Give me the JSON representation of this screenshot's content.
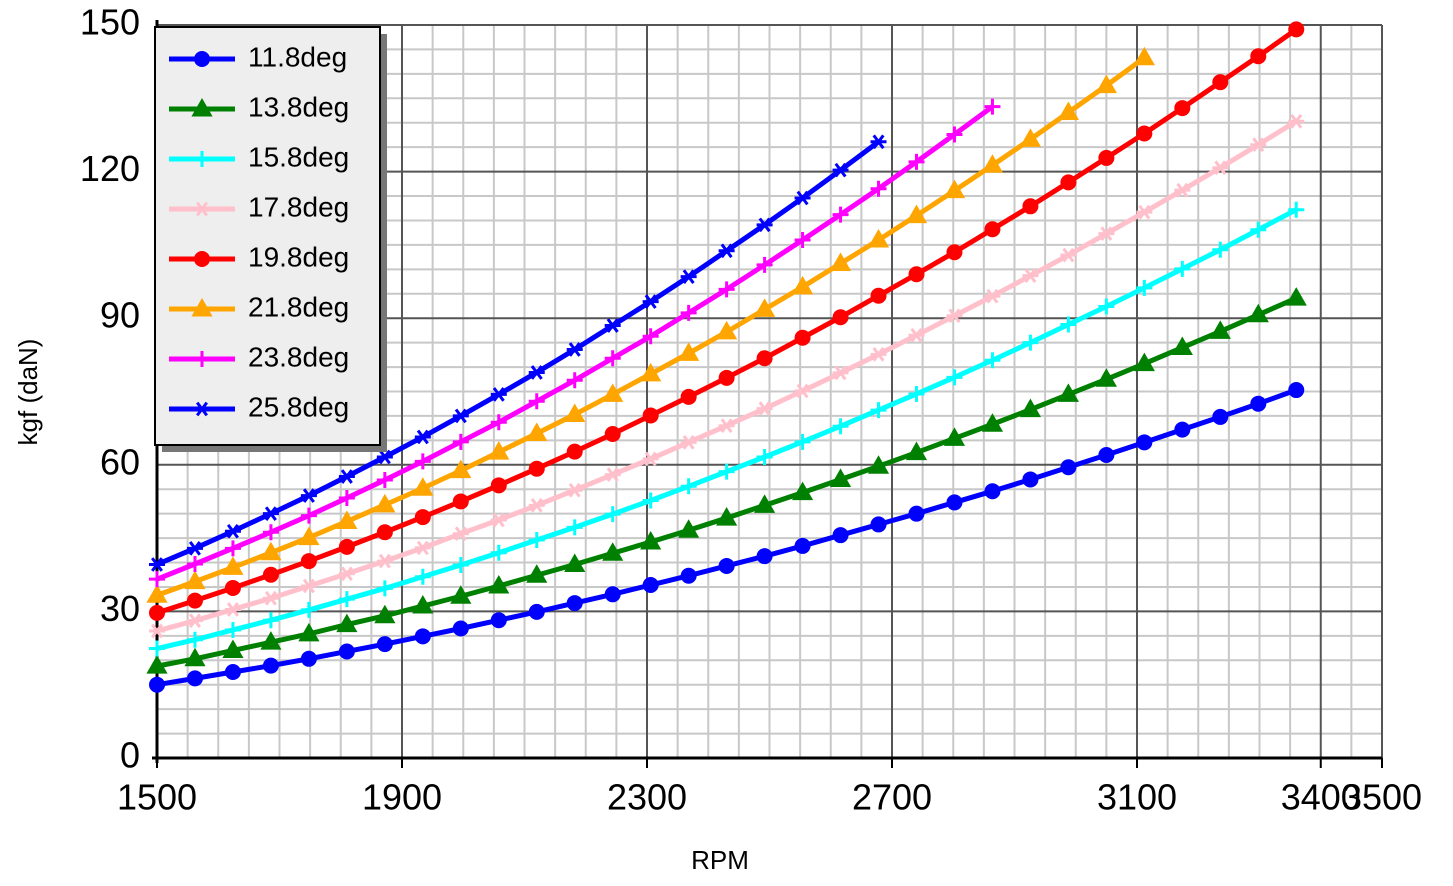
{
  "chart_data": {
    "type": "line",
    "xlabel": "RPM",
    "ylabel": "kgf (daN)",
    "x": [
      1500,
      1562,
      1624,
      1686,
      1748,
      1810,
      1872,
      1934,
      1996,
      2058,
      2120,
      2182,
      2244,
      2306,
      2368,
      2430,
      2492,
      2554,
      2616,
      2678,
      2740,
      2802,
      2864,
      2926,
      2988,
      3050,
      3112,
      3174,
      3236,
      3298,
      3360
    ],
    "series": [
      {
        "name": "11.8deg",
        "color": "#0000ff",
        "marker": "circle",
        "values": [
          15.0,
          16.3,
          17.6,
          18.9,
          20.3,
          21.8,
          23.3,
          24.9,
          26.5,
          28.2,
          29.9,
          31.7,
          33.5,
          35.4,
          37.3,
          39.3,
          41.3,
          43.4,
          45.6,
          47.8,
          50.0,
          52.3,
          54.6,
          57.0,
          59.5,
          62.0,
          64.6,
          67.2,
          69.8,
          72.5,
          75.3
        ]
      },
      {
        "name": "13.8deg",
        "color": "#008000",
        "marker": "triangle",
        "values": [
          18.8,
          20.3,
          22.0,
          23.7,
          25.4,
          27.3,
          29.1,
          31.1,
          33.1,
          35.2,
          37.4,
          39.6,
          41.9,
          44.2,
          46.6,
          49.1,
          51.7,
          54.3,
          57.0,
          59.7,
          62.5,
          65.4,
          68.3,
          71.3,
          74.4,
          77.5,
          80.7,
          84.0,
          87.3,
          90.7,
          94.1
        ]
      },
      {
        "name": "15.8deg",
        "color": "#00ffff",
        "marker": "plus",
        "values": [
          22.4,
          24.2,
          26.2,
          28.2,
          30.3,
          32.5,
          34.7,
          37.1,
          39.5,
          42.0,
          44.6,
          47.2,
          49.9,
          52.7,
          55.6,
          58.6,
          61.6,
          64.7,
          67.9,
          71.2,
          74.5,
          77.9,
          81.4,
          85.0,
          88.7,
          92.4,
          96.2,
          100.1,
          104.0,
          108.1,
          112.2
        ]
      },
      {
        "name": "17.8deg",
        "color": "#ffc0cb",
        "marker": "star",
        "values": [
          26.0,
          28.1,
          30.4,
          32.7,
          35.2,
          37.7,
          40.3,
          43.0,
          45.9,
          48.7,
          51.7,
          54.8,
          58.0,
          61.2,
          64.6,
          68.0,
          71.5,
          75.1,
          78.8,
          82.6,
          86.5,
          90.5,
          94.5,
          98.7,
          102.9,
          107.3,
          111.7,
          116.2,
          120.8,
          125.5,
          130.3
        ]
      },
      {
        "name": "19.8deg",
        "color": "#ff0000",
        "marker": "circle",
        "values": [
          29.7,
          32.2,
          34.8,
          37.5,
          40.3,
          43.2,
          46.2,
          49.3,
          52.5,
          55.8,
          59.2,
          62.7,
          66.3,
          70.1,
          73.9,
          77.8,
          81.8,
          86.0,
          90.2,
          94.6,
          99.0,
          103.5,
          108.2,
          112.9,
          117.8,
          122.8,
          127.8,
          133.0,
          138.3,
          143.6,
          149.1
        ]
      },
      {
        "name": "21.8deg",
        "color": "#ffa500",
        "marker": "triangle",
        "values": [
          33.3,
          36.1,
          39.0,
          42.0,
          45.1,
          48.4,
          51.8,
          55.2,
          58.8,
          62.6,
          66.4,
          70.3,
          74.4,
          78.6,
          82.8,
          87.2,
          91.8,
          96.4,
          101.2,
          106.0,
          111.0,
          116.1,
          121.3,
          126.6,
          132.1,
          137.6,
          143.3,
          null,
          null,
          null,
          null
        ]
      },
      {
        "name": "23.8deg",
        "color": "#ff00ff",
        "marker": "plus",
        "values": [
          36.6,
          39.7,
          42.9,
          46.2,
          49.6,
          53.2,
          56.9,
          60.7,
          64.7,
          68.7,
          73.0,
          77.3,
          81.8,
          86.3,
          91.1,
          95.9,
          100.9,
          106.0,
          111.2,
          116.5,
          122.0,
          127.6,
          133.3,
          null,
          null,
          null,
          null,
          null,
          null,
          null,
          null
        ]
      },
      {
        "name": "25.8deg",
        "color": "#0000ff",
        "marker": "star",
        "values": [
          39.6,
          42.9,
          46.4,
          50.0,
          53.7,
          57.6,
          61.6,
          65.7,
          70.0,
          74.4,
          78.9,
          83.6,
          88.5,
          93.4,
          98.5,
          103.8,
          109.1,
          114.6,
          120.3,
          126.1,
          null,
          null,
          null,
          null,
          null,
          null,
          null,
          null,
          null,
          null,
          null
        ]
      }
    ],
    "xlim": [
      1500,
      3500
    ],
    "xticks": [
      1500,
      1900,
      2300,
      2700,
      3100,
      3400,
      3500
    ],
    "ylim": [
      0,
      150
    ],
    "yticks": [
      0,
      30,
      60,
      90,
      120,
      150
    ],
    "grid": true,
    "legend": "upper left"
  }
}
